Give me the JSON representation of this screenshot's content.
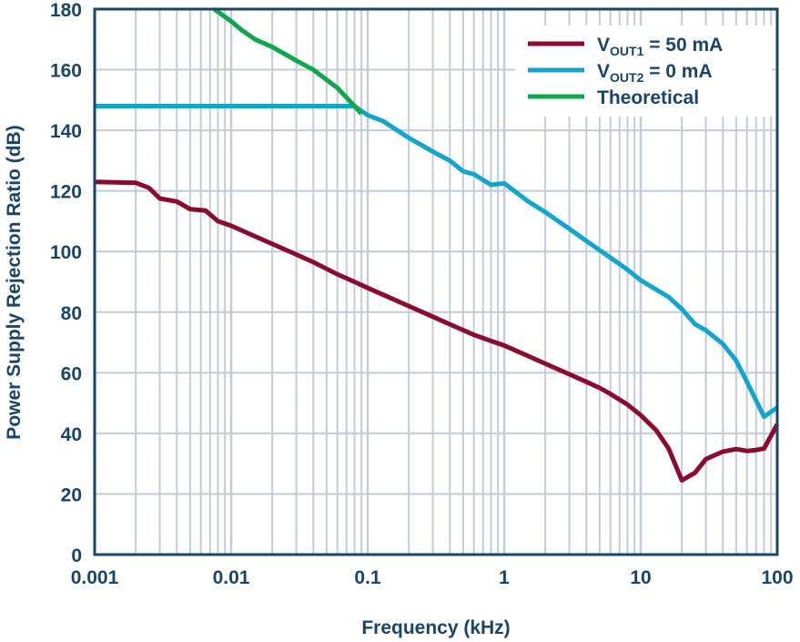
{
  "chart_data": {
    "type": "line",
    "title": "",
    "xlabel": "Frequency (kHz)",
    "ylabel": "Power Supply Rejection Ratio (dB)",
    "xscale": "log",
    "xlim": [
      0.001,
      100
    ],
    "ylim": [
      0,
      180
    ],
    "xticks": [
      0.001,
      0.01,
      0.1,
      1,
      10,
      100
    ],
    "xtick_labels": [
      "0.001",
      "0.01",
      "0.1",
      "1",
      "10",
      "100"
    ],
    "yticks": [
      0,
      20,
      40,
      60,
      80,
      100,
      120,
      140,
      160,
      180
    ],
    "ytick_labels": [
      "0",
      "20",
      "40",
      "60",
      "80",
      "100",
      "120",
      "140",
      "160",
      "180"
    ],
    "grid": true,
    "legend_position": "top-right",
    "colors": {
      "axis": "#1b4467",
      "grid": "#c3ccd8"
    },
    "series": [
      {
        "name": "VOUT1 = 50 mA",
        "legend_main": "V",
        "legend_sub": "OUT1",
        "legend_rest": " = 50 mA",
        "color": "#8a0b2e",
        "x": [
          0.001,
          0.002,
          0.0025,
          0.003,
          0.004,
          0.005,
          0.0065,
          0.008,
          0.01,
          0.015,
          0.02,
          0.03,
          0.04,
          0.06,
          0.08,
          0.1,
          0.15,
          0.2,
          0.3,
          0.4,
          0.6,
          0.8,
          1,
          1.5,
          2,
          3,
          4,
          5,
          6,
          8,
          10,
          13,
          16,
          20,
          25,
          30,
          40,
          50,
          60,
          70,
          80,
          100
        ],
        "y": [
          123,
          122.7,
          121,
          117.5,
          116.5,
          114,
          113.5,
          110,
          108.5,
          105,
          102.5,
          99,
          96.5,
          92.5,
          90,
          88,
          84.5,
          82,
          78.5,
          76,
          72.5,
          70.5,
          69,
          65.5,
          63,
          59.5,
          57,
          55,
          53,
          49.5,
          46,
          41,
          35,
          24.5,
          27,
          31.5,
          34,
          34.8,
          34.2,
          34.5,
          35,
          43
        ]
      },
      {
        "name": "VOUT2 = 0 mA",
        "legend_main": "V",
        "legend_sub": "OUT2",
        "legend_rest": " = 0 mA",
        "color": "#15a4cc",
        "x": [
          0.001,
          0.08,
          0.1,
          0.13,
          0.2,
          0.3,
          0.4,
          0.5,
          0.6,
          0.8,
          1,
          1.5,
          2,
          3,
          4,
          6,
          8,
          10,
          16,
          20,
          25,
          30,
          40,
          50,
          60,
          80,
          100
        ],
        "y": [
          148,
          148,
          145,
          143,
          137.5,
          133,
          130,
          126.5,
          125.5,
          122,
          122.5,
          116.5,
          113,
          107.5,
          103.5,
          98,
          94,
          90.5,
          85,
          81,
          76,
          74,
          69.5,
          64,
          57,
          45.5,
          48.5
        ]
      },
      {
        "name": "Theoretical",
        "legend_main": "Theoretical",
        "legend_sub": "",
        "legend_rest": "",
        "color": "#12a54f",
        "x": [
          0.0075,
          0.01,
          0.012,
          0.015,
          0.02,
          0.03,
          0.04,
          0.06,
          0.08,
          0.09
        ],
        "y": [
          180,
          176,
          173,
          170,
          167.5,
          163,
          160,
          154,
          148,
          145.5
        ]
      }
    ]
  }
}
